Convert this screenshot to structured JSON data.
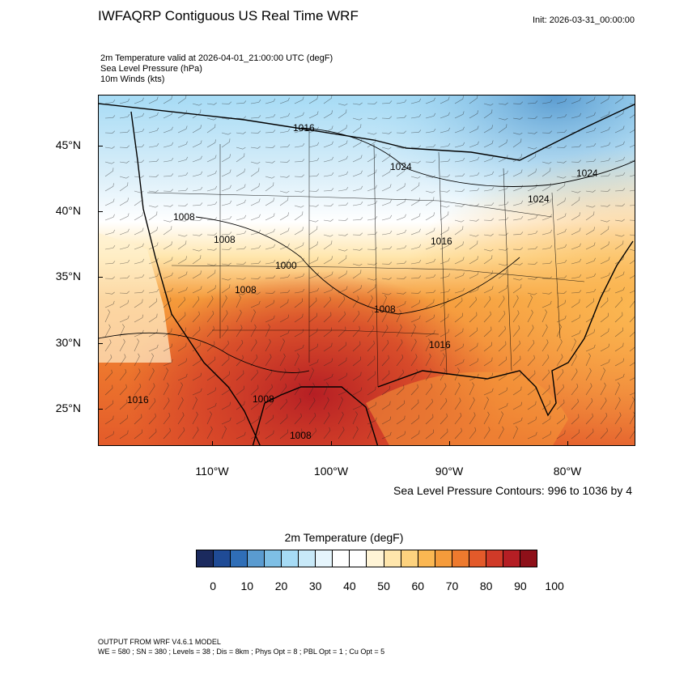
{
  "header": {
    "title": "IWFAQRP Contiguous US Real Time WRF",
    "init": "Init: 2026-03-31_00:00:00"
  },
  "fields": {
    "line1": "2m Temperature valid at 2026-04-01_21:00:00 UTC   (degF)",
    "line2": "Sea Level Pressure   (hPa)",
    "line3": "10m Winds   (kts)"
  },
  "map": {
    "lat_labels": [
      "45°N",
      "40°N",
      "35°N",
      "30°N",
      "25°N"
    ],
    "lon_labels": [
      "110°W",
      "100°W",
      "90°W",
      "80°W"
    ],
    "pressure_labels": [
      "1016",
      "1024",
      "1024",
      "1024",
      "1008",
      "1008",
      "1000",
      "1008",
      "1008",
      "1016",
      "1016",
      "1016",
      "1008",
      "1008"
    ],
    "contour_info": "Sea Level Pressure Contours: 996 to 1036 by 4"
  },
  "colorbar": {
    "title": "2m Temperature  (degF)",
    "colors": [
      "#1b2a5e",
      "#1f4b96",
      "#2f6eb7",
      "#5a9bd0",
      "#7ebfe5",
      "#a6dbf5",
      "#c8e9f8",
      "#e6f5fc",
      "#ffffff",
      "#ffffff",
      "#fff4d6",
      "#ffe6ac",
      "#fdd27e",
      "#fbb752",
      "#f59b3b",
      "#ee7a2e",
      "#e35a2a",
      "#d03a28",
      "#b51e24",
      "#8e1019"
    ],
    "labels": [
      "0",
      "10",
      "20",
      "30",
      "40",
      "50",
      "60",
      "70",
      "80",
      "90",
      "100"
    ]
  },
  "footer": {
    "line1": "OUTPUT FROM WRF V4.6.1 MODEL",
    "line2": "WE = 580 ; SN = 380 ; Levels = 38 ; Dis = 8km ; Phys Opt = 8 ; PBL Opt = 1 ; Cu Opt = 5"
  }
}
